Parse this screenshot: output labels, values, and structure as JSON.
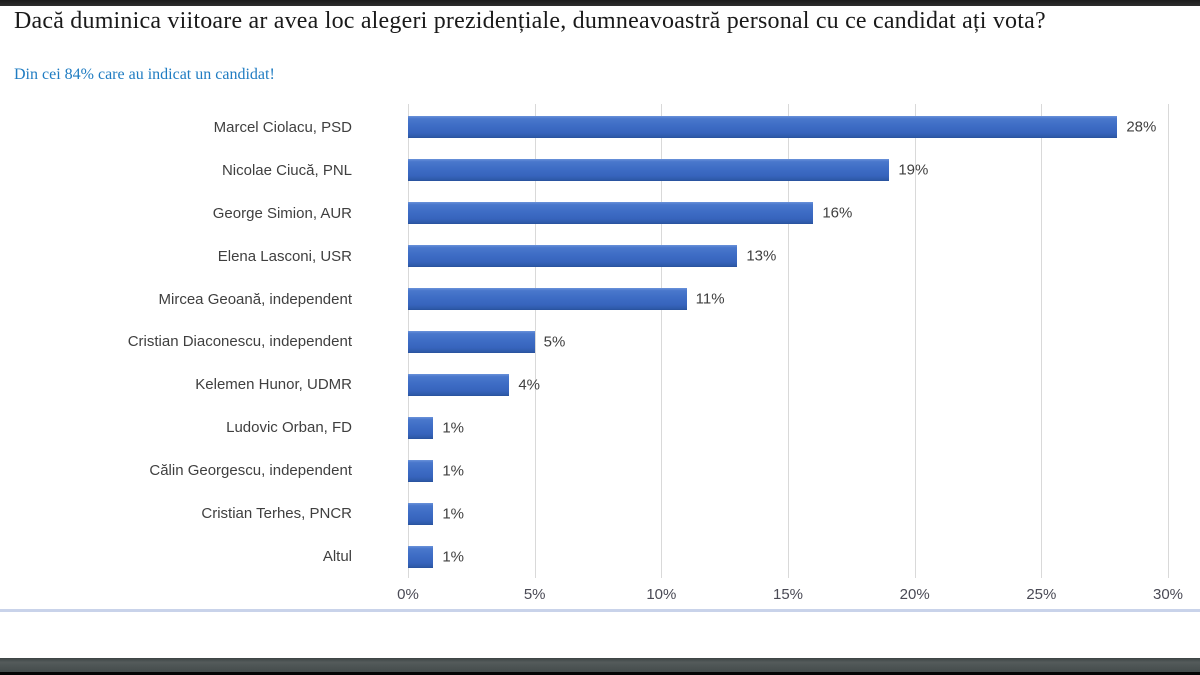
{
  "header": {
    "title": "Dacă duminica viitoare ar avea loc alegeri prezidențiale, dumneavoastră personal cu ce candidat ați vota?",
    "subtitle": "Din cei 84% care au indicat un candidat!"
  },
  "chart_data": {
    "type": "bar",
    "orientation": "horizontal",
    "title": "Dacă duminica viitoare ar avea loc alegeri prezidențiale, dumneavoastră personal cu ce candidat ați vota?",
    "subtitle": "Din cei 84% care au indicat un candidat!",
    "categories": [
      "Marcel Ciolacu, PSD",
      "Nicolae Ciucă, PNL",
      "George Simion, AUR",
      "Elena Lasconi, USR",
      "Mircea Geoană, independent",
      "Cristian Diaconescu, independent",
      "Kelemen Hunor, UDMR",
      "Ludovic Orban, FD",
      "Călin Georgescu, independent",
      "Cristian Terhes, PNCR",
      "Altul"
    ],
    "values": [
      28,
      19,
      16,
      13,
      11,
      5,
      4,
      1,
      1,
      1,
      1
    ],
    "data_labels": [
      "28%",
      "19%",
      "16%",
      "13%",
      "11%",
      "5%",
      "4%",
      "1%",
      "1%",
      "1%",
      "1%"
    ],
    "x_ticks": [
      "0%",
      "5%",
      "10%",
      "15%",
      "20%",
      "25%",
      "30%"
    ],
    "xlim": [
      0,
      30
    ],
    "xlabel": "",
    "ylabel": "",
    "grid": true,
    "legend": false,
    "bar_color": "#3E6DC5",
    "gridline_color": "#D9D9D9"
  },
  "colors": {
    "bar_main": "#3E6DC5",
    "bar_top": "#6B92DA",
    "bar_bottom": "#2D59A8",
    "gridline": "#D9D9D9",
    "axis_text": "#4A4A55",
    "label_text": "#3F3F3F",
    "title_text": "#1A1A1A",
    "subtitle_text": "#1F7CC2",
    "top_window_bar": "#262626",
    "bottom_window_bar": "#4D5454",
    "divider_line": "#C9D3EA"
  }
}
